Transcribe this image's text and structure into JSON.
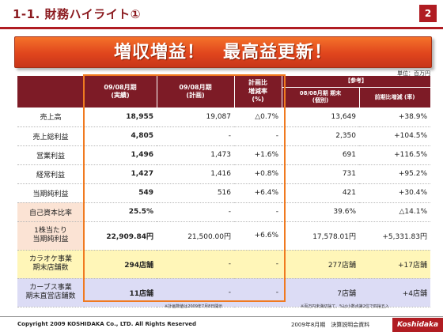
{
  "header": {
    "title": "1-1. 財務ハイライト①",
    "page_number": "2"
  },
  "banner": "増収増益！　最高益更新！",
  "unit": "単位：百万円",
  "table": {
    "columns": {
      "actual": "09/08月期\n(実績)",
      "plan": "09/08月期\n(計画)",
      "vs_plan": "計画比\n増減率\n(%)",
      "reference": "【参考】",
      "prior": "08/08月期 期末\n(個別)",
      "yoy": "前期比増減 (率)"
    },
    "rows": [
      {
        "label": "売上高",
        "actual": "18,955",
        "plan": "19,087",
        "vs_plan": "△0.7%",
        "prior": "13,649",
        "yoy": "+38.9%"
      },
      {
        "label": "売上総利益",
        "actual": "4,805",
        "plan": "-",
        "vs_plan": "-",
        "prior": "2,350",
        "yoy": "+104.5%"
      },
      {
        "label": "営業利益",
        "actual": "1,496",
        "plan": "1,473",
        "vs_plan": "+1.6%",
        "prior": "691",
        "yoy": "+116.5%"
      },
      {
        "label": "経常利益",
        "actual": "1,427",
        "plan": "1,416",
        "vs_plan": "+0.8%",
        "prior": "731",
        "yoy": "+95.2%"
      },
      {
        "label": "当期純利益",
        "actual": "549",
        "plan": "516",
        "vs_plan": "+6.4%",
        "prior": "421",
        "yoy": "+30.4%"
      },
      {
        "label": "自己資本比率",
        "actual": "25.5%",
        "plan": "-",
        "vs_plan": "-",
        "prior": "39.6%",
        "yoy": "△14.1%"
      },
      {
        "label": "1株当たり\n当期純利益",
        "actual": "22,909.84円",
        "plan": "21,500.00円",
        "vs_plan": "+6.6%",
        "prior": "17,578.01円",
        "yoy": "+5,331.83円"
      },
      {
        "label": "カラオケ事業\n期末店舗数",
        "actual": "294店舗",
        "plan": "-",
        "vs_plan": "-",
        "prior": "277店舗",
        "yoy": "+17店舗"
      },
      {
        "label": "カーブス事業\n期末直営店舗数",
        "actual": "11店舗",
        "plan": "-",
        "vs_plan": "-",
        "prior": "7店舗",
        "yoy": "+4店舗"
      }
    ]
  },
  "notes": {
    "left": "※計画数値は2009年7月8日開示",
    "right": "※百万円未満切捨て、%は小数点第2位で四捨五入"
  },
  "footer": {
    "copyright": "Copyright 2009 KOSHIDAKA Co., LTD. All Rights Reserved",
    "document": "2009年8月期　決算説明会資料",
    "logo": "Koshidaka"
  },
  "colors": {
    "brand": "#b01c22",
    "banner": "#e0451d",
    "table_header": "#7d1b26",
    "highlight": "#f07a20",
    "karaoke_row": "#fff6b8",
    "curves_row": "#dcdcf5"
  }
}
